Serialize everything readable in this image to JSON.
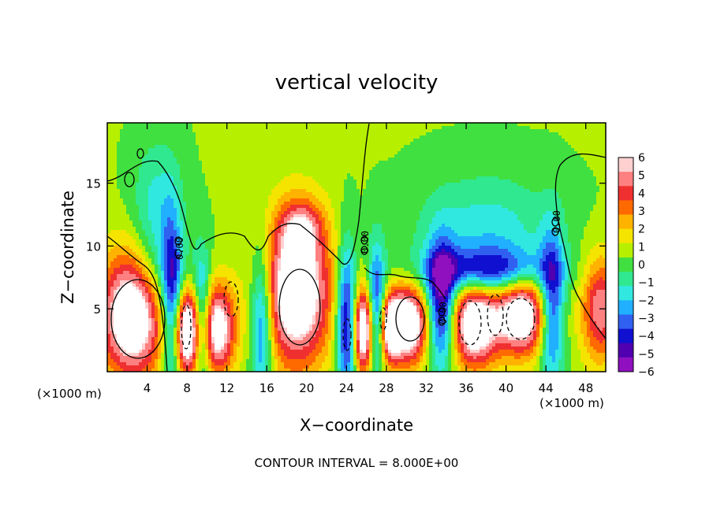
{
  "chart_data": {
    "type": "heatmap",
    "title": "vertical velocity",
    "xlabel": "X−coordinate",
    "ylabel": "Z−coordinate",
    "x_unit_label": "(×1000 m)",
    "footer": "CONTOUR INTERVAL = 8.000E+00",
    "contour_label": "0.00",
    "xlim": [
      0,
      50
    ],
    "ylim": [
      0,
      19.8
    ],
    "x_ticks": [
      4,
      8,
      12,
      16,
      20,
      24,
      28,
      32,
      36,
      40,
      44,
      48
    ],
    "y_ticks": [
      5,
      10,
      15
    ],
    "colorbar": {
      "range": [
        -6,
        6
      ],
      "labels": [
        "6",
        "5",
        "4",
        "3",
        "2",
        "1",
        "0",
        "−1",
        "−2",
        "−3",
        "−4",
        "−5",
        "−6"
      ],
      "colors": [
        "#ffd0d0",
        "#ff8080",
        "#f03030",
        "#ff6a00",
        "#ffb300",
        "#f4e400",
        "#b6f000",
        "#40e040",
        "#30e890",
        "#30e8e0",
        "#20b0ff",
        "#3060f0",
        "#1010d0",
        "#5000b0",
        "#9010c0"
      ]
    },
    "background_level": 0.5,
    "features": [
      {
        "x": 2.5,
        "z": 4.5,
        "rx": 3.2,
        "rz": 5.0,
        "w": 8
      },
      {
        "x": 49.5,
        "z": 5.0,
        "rx": 2.0,
        "rz": 4.2,
        "w": 5
      },
      {
        "x": 19.0,
        "z": 6.5,
        "rx": 3.4,
        "rz": 6.0,
        "w": 8
      },
      {
        "x": 19.5,
        "z": 11.5,
        "rx": 2.0,
        "rz": 2.0,
        "w": 3
      },
      {
        "x": 8.0,
        "z": 3.2,
        "rx": 1.3,
        "rz": 3.5,
        "w": 8
      },
      {
        "x": 11.0,
        "z": 3.4,
        "rx": 1.8,
        "rz": 3.6,
        "w": 7
      },
      {
        "x": 25.7,
        "z": 3.3,
        "rx": 1.0,
        "rz": 3.3,
        "w": 8
      },
      {
        "x": 28.4,
        "z": 3.4,
        "rx": 1.0,
        "rz": 2.6,
        "w": 6
      },
      {
        "x": 30.2,
        "z": 3.8,
        "rx": 2.0,
        "rz": 3.2,
        "w": 8
      },
      {
        "x": 36.8,
        "z": 4.0,
        "rx": 2.4,
        "rz": 3.6,
        "w": 8
      },
      {
        "x": 41.5,
        "z": 4.6,
        "rx": 2.6,
        "rz": 3.2,
        "w": 8
      },
      {
        "x": 6.5,
        "z": 5.0,
        "rx": 1.0,
        "rz": 7.0,
        "w": -5
      },
      {
        "x": 9.5,
        "z": 4.0,
        "rx": 0.9,
        "rz": 5.0,
        "w": -5
      },
      {
        "x": 15.5,
        "z": 4.0,
        "rx": 1.1,
        "rz": 6.0,
        "w": -5
      },
      {
        "x": 24.0,
        "z": 4.0,
        "rx": 1.0,
        "rz": 6.0,
        "w": -6
      },
      {
        "x": 27.0,
        "z": 5.0,
        "rx": 0.9,
        "rz": 5.0,
        "w": -5
      },
      {
        "x": 33.5,
        "z": 5.0,
        "rx": 1.4,
        "rz": 5.0,
        "w": -6
      },
      {
        "x": 38.0,
        "z": 8.0,
        "rx": 6.0,
        "rz": 1.8,
        "w": -5
      },
      {
        "x": 44.6,
        "z": 5.0,
        "rx": 1.2,
        "rz": 6.0,
        "w": -5
      },
      {
        "x": 38.0,
        "z": 10.5,
        "rx": 7.0,
        "rz": 5.0,
        "w": -2.5
      },
      {
        "x": 5.0,
        "z": 12.0,
        "rx": 2.5,
        "rz": 6.0,
        "w": -2.5
      },
      {
        "x": 6.0,
        "z": 7.5,
        "rx": 3.0,
        "rz": 3.0,
        "w": -1.5
      }
    ]
  }
}
